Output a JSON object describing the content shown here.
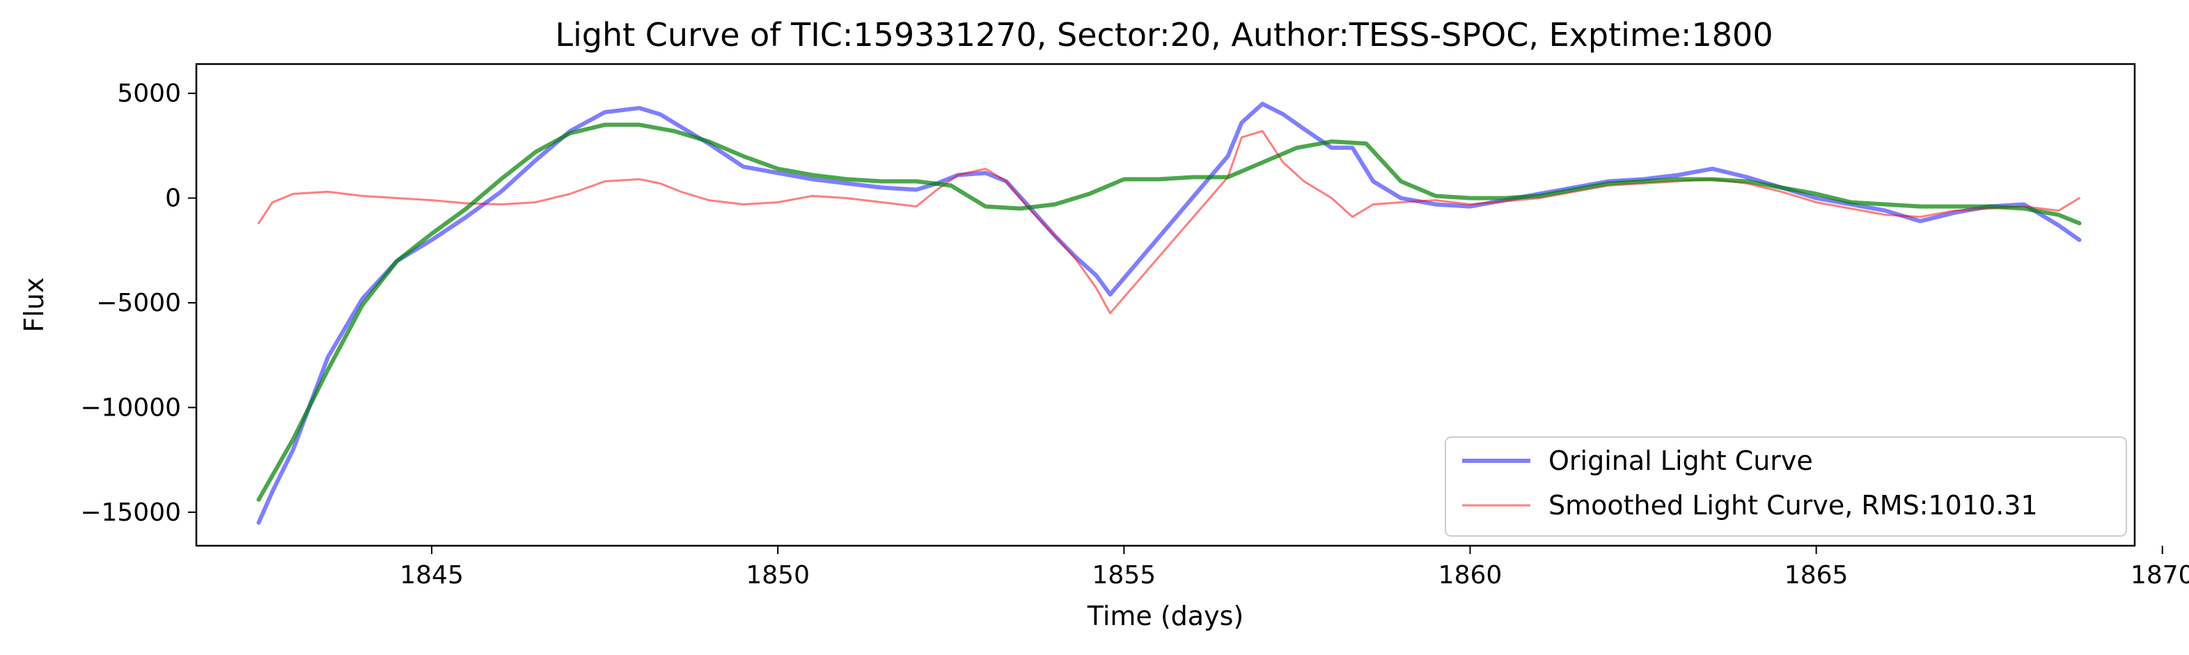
{
  "chart_data": {
    "type": "line",
    "title": "Light Curve of TIC:159331270, Sector:20, Author:TESS-SPOC, Exptime:1800",
    "xlabel": "Time (days)",
    "ylabel": "Flux",
    "xlim": [
      1841.6,
      1869.6
    ],
    "ylim": [
      -16600,
      6400
    ],
    "xticks": [
      1845,
      1850,
      1855,
      1860,
      1865,
      1870
    ],
    "xtick_labels": [
      "1845",
      "1850",
      "1855",
      "1860",
      "1865",
      "1870"
    ],
    "yticks": [
      -15000,
      -10000,
      -5000,
      0,
      5000
    ],
    "ytick_labels": [
      "−15000",
      "−10000",
      "−5000",
      "0",
      "5000"
    ],
    "grid": false,
    "legend_position": "bottom-right",
    "series": [
      {
        "name": "Original Light Curve",
        "color": "#0000ff",
        "opacity": 0.5,
        "style": "thick",
        "x": [
          1842.5,
          1842.7,
          1843.0,
          1843.5,
          1844.0,
          1844.5,
          1845.0,
          1845.5,
          1846.0,
          1846.5,
          1847.0,
          1847.5,
          1848.0,
          1848.3,
          1848.6,
          1849.0,
          1849.5,
          1850.0,
          1850.5,
          1851.0,
          1851.5,
          1852.0,
          1852.3,
          1852.6,
          1853.0,
          1853.3,
          1853.6,
          1854.0,
          1854.3,
          1854.6,
          1854.8,
          1856.5,
          1856.7,
          1857.0,
          1857.3,
          1857.6,
          1858.0,
          1858.3,
          1858.6,
          1859.0,
          1859.5,
          1860.0,
          1860.5,
          1861.0,
          1861.5,
          1862.0,
          1862.5,
          1863.0,
          1863.5,
          1864.0,
          1864.5,
          1865.0,
          1865.5,
          1866.0,
          1866.5,
          1867.0,
          1867.5,
          1868.0,
          1868.5,
          1868.8
        ],
        "y": [
          -15500,
          -14000,
          -12000,
          -7600,
          -4800,
          -3000,
          -2000,
          -900,
          300,
          1800,
          3200,
          4100,
          4300,
          4000,
          3400,
          2600,
          1500,
          1200,
          900,
          700,
          500,
          400,
          700,
          1100,
          1200,
          800,
          -300,
          -1800,
          -2800,
          -3700,
          -4600,
          2000,
          3600,
          4500,
          4000,
          3300,
          2400,
          2400,
          800,
          0,
          -300,
          -400,
          -100,
          200,
          500,
          800,
          900,
          1100,
          1400,
          1000,
          500,
          0,
          -300,
          -600,
          -1100,
          -700,
          -400,
          -300,
          -1300,
          -2000
        ]
      },
      {
        "name": "Smoothed Light Curve, RMS:1010.31",
        "color": "#ff0000",
        "opacity": 0.5,
        "style": "thin",
        "x": [
          1842.5,
          1842.7,
          1843.0,
          1843.5,
          1844.0,
          1844.5,
          1845.0,
          1845.5,
          1846.0,
          1846.5,
          1847.0,
          1847.5,
          1848.0,
          1848.3,
          1848.6,
          1849.0,
          1849.5,
          1850.0,
          1850.5,
          1851.0,
          1851.5,
          1852.0,
          1852.3,
          1852.6,
          1853.0,
          1853.3,
          1853.6,
          1854.0,
          1854.3,
          1854.6,
          1854.8,
          1856.5,
          1856.7,
          1857.0,
          1857.3,
          1857.6,
          1858.0,
          1858.3,
          1858.6,
          1859.0,
          1859.5,
          1860.0,
          1860.5,
          1861.0,
          1861.5,
          1862.0,
          1862.5,
          1863.0,
          1863.5,
          1864.0,
          1864.5,
          1865.0,
          1865.5,
          1866.0,
          1866.5,
          1867.0,
          1867.5,
          1868.0,
          1868.5,
          1868.8
        ],
        "y": [
          -1200,
          -200,
          200,
          300,
          100,
          0,
          -100,
          -250,
          -300,
          -200,
          200,
          800,
          900,
          700,
          300,
          -100,
          -300,
          -200,
          100,
          0,
          -200,
          -400,
          400,
          1100,
          1400,
          800,
          -400,
          -1800,
          -2900,
          -4300,
          -5500,
          1000,
          2900,
          3200,
          1700,
          800,
          0,
          -900,
          -300,
          -200,
          -100,
          -300,
          -150,
          0,
          300,
          600,
          700,
          800,
          900,
          700,
          300,
          -200,
          -500,
          -800,
          -900,
          -600,
          -500,
          -400,
          -600,
          0
        ]
      },
      {
        "name": "",
        "color": "#008000",
        "opacity": 0.7,
        "style": "thick",
        "x": [
          1842.5,
          1843.0,
          1843.5,
          1844.0,
          1844.5,
          1845.0,
          1845.5,
          1846.0,
          1846.5,
          1847.0,
          1847.5,
          1848.0,
          1848.5,
          1849.0,
          1849.5,
          1850.0,
          1850.5,
          1851.0,
          1851.5,
          1852.0,
          1852.5,
          1853.0,
          1853.5,
          1854.0,
          1854.5,
          1855.0,
          1855.5,
          1856.0,
          1856.5,
          1857.0,
          1857.5,
          1858.0,
          1858.5,
          1859.0,
          1859.5,
          1860.0,
          1860.5,
          1861.0,
          1861.5,
          1862.0,
          1862.5,
          1863.0,
          1863.5,
          1864.0,
          1864.5,
          1865.0,
          1865.5,
          1866.0,
          1866.5,
          1867.0,
          1867.5,
          1868.0,
          1868.5,
          1868.8
        ],
        "y": [
          -14400,
          -11500,
          -8200,
          -5100,
          -3000,
          -1700,
          -500,
          900,
          2200,
          3100,
          3500,
          3500,
          3200,
          2700,
          2000,
          1400,
          1100,
          900,
          800,
          800,
          600,
          -400,
          -500,
          -300,
          200,
          900,
          900,
          1000,
          1000,
          1700,
          2400,
          2700,
          2600,
          800,
          100,
          0,
          0,
          100,
          400,
          700,
          800,
          900,
          900,
          800,
          500,
          200,
          -200,
          -300,
          -400,
          -400,
          -400,
          -500,
          -800,
          -1200
        ]
      }
    ]
  }
}
